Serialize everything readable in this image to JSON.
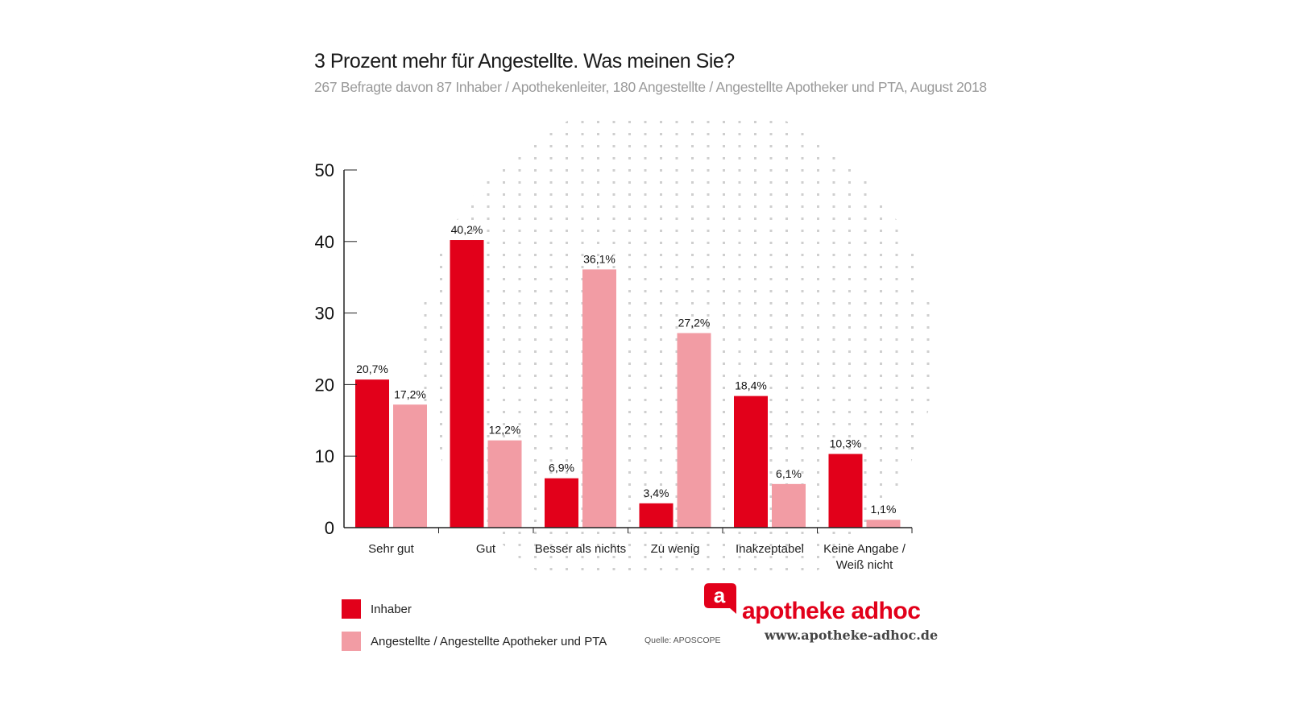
{
  "chart_data": {
    "type": "bar",
    "title": "3 Prozent mehr für Angestellte. Was meinen Sie?",
    "subtitle": "267 Befragte davon 87 Inhaber / Apothekenleiter, 180 Angestellte / Angestellte Apotheker und PTA, August 2018",
    "categories": [
      "Sehr gut",
      "Gut",
      "Besser als nichts",
      "Zu wenig",
      "Inakzeptabel",
      "Keine Angabe / Weiß nicht"
    ],
    "series": [
      {
        "name": "Inhaber",
        "color": "#e2001a",
        "values": [
          20.7,
          40.2,
          6.9,
          3.4,
          18.4,
          10.3
        ],
        "labels": [
          "20,7%",
          "40,2%",
          "6,9%",
          "3,4%",
          "18,4%",
          "10,3%"
        ]
      },
      {
        "name": "Angestellte / Angestellte Apotheker und PTA",
        "color": "#f29ca4",
        "values": [
          17.2,
          12.2,
          36.1,
          27.2,
          6.1,
          1.1
        ],
        "labels": [
          "17,2%",
          "12,2%",
          "36,1%",
          "27,2%",
          "6,1%",
          "1,1%"
        ]
      }
    ],
    "yticks": [
      "0",
      "10",
      "20",
      "30",
      "40",
      "50"
    ],
    "ylim": [
      0,
      50
    ],
    "xlabel": "",
    "ylabel": "",
    "legend": "bottom-left"
  },
  "source": "Quelle: APOSCOPE",
  "logo": {
    "text": "apotheke adhoc",
    "letter": "a",
    "url": "www.apotheke-adhoc.de"
  }
}
